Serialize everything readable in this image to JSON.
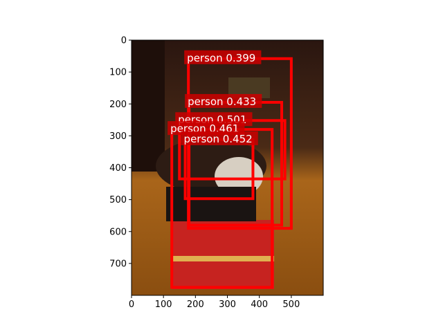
{
  "plot": {
    "x_ticks": [
      0,
      100,
      200,
      300,
      400,
      500
    ],
    "y_ticks": [
      0,
      100,
      200,
      300,
      400,
      500,
      600,
      700
    ],
    "x_range": [
      0,
      600
    ],
    "y_range": [
      0,
      800
    ],
    "y_inverted": true,
    "photo_colors": {
      "wall": "#2a1610",
      "floor": "#b36b14",
      "cart": "#c62320",
      "hair": "#2d1c14",
      "sweater": "#d7cfc2"
    },
    "box_color": "#ff0000",
    "label_bg": "#cc0000"
  },
  "detections": [
    {
      "label": "person 0.399",
      "x1": 178,
      "y1": 58,
      "x2": 500,
      "y2": 590
    },
    {
      "label": "person 0.433",
      "x1": 180,
      "y1": 195,
      "x2": 470,
      "y2": 580
    },
    {
      "label": "person 0.501",
      "x1": 150,
      "y1": 252,
      "x2": 480,
      "y2": 435
    },
    {
      "label": "person 0.461",
      "x1": 126,
      "y1": 280,
      "x2": 440,
      "y2": 775
    },
    {
      "label": "person 0.452",
      "x1": 168,
      "y1": 312,
      "x2": 380,
      "y2": 497
    }
  ]
}
